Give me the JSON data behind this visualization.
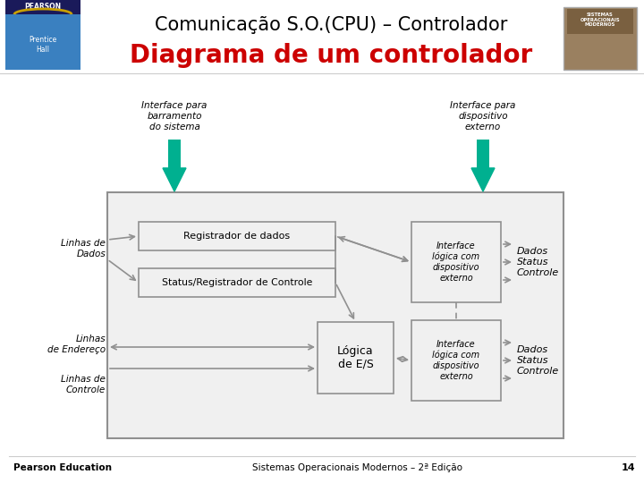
{
  "bg_color": "#ffffff",
  "title1": "Comunicação S.O.(CPU) – Controlador",
  "title2": "Diagrama de um controlador",
  "title1_color": "#000000",
  "title2_color": "#cc0000",
  "title1_fontsize": 15,
  "title2_fontsize": 20,
  "footer_left": "Pearson Education",
  "footer_right": "Sistemas Operacionais Modernos – 2ª Edição",
  "footer_page": "14",
  "label_interface_sys": "Interface para\nbarramento\ndo sistema",
  "label_interface_dev": "Interface para\ndispositivo\nexterno",
  "label_linhas_dados": "Linhas de\nDados",
  "label_linhas_end": "Linhas\nde Endereço",
  "label_linhas_ctrl": "Linhas de\nControle",
  "label_reg_dados": "Registrador de dados",
  "label_status_reg": "Status/Registrador de Controle",
  "label_logica": "Lógica\nde E/S",
  "label_iface_log1": "Interface\nlógica com\ndispositivo\nexterno",
  "label_iface_log2": "Interface\nlógica com\ndispositivo\nexterno",
  "label_dados1": "Dados\nStatus\nControle",
  "label_dados2": "Dados\nStatus\nControle",
  "teal_color": "#00b090",
  "box_bg": "#f0f0f0",
  "box_border": "#909090",
  "outer_box_bg": "#f0f0f0",
  "outer_box_border": "#909090",
  "gray_arrow": "#909090"
}
